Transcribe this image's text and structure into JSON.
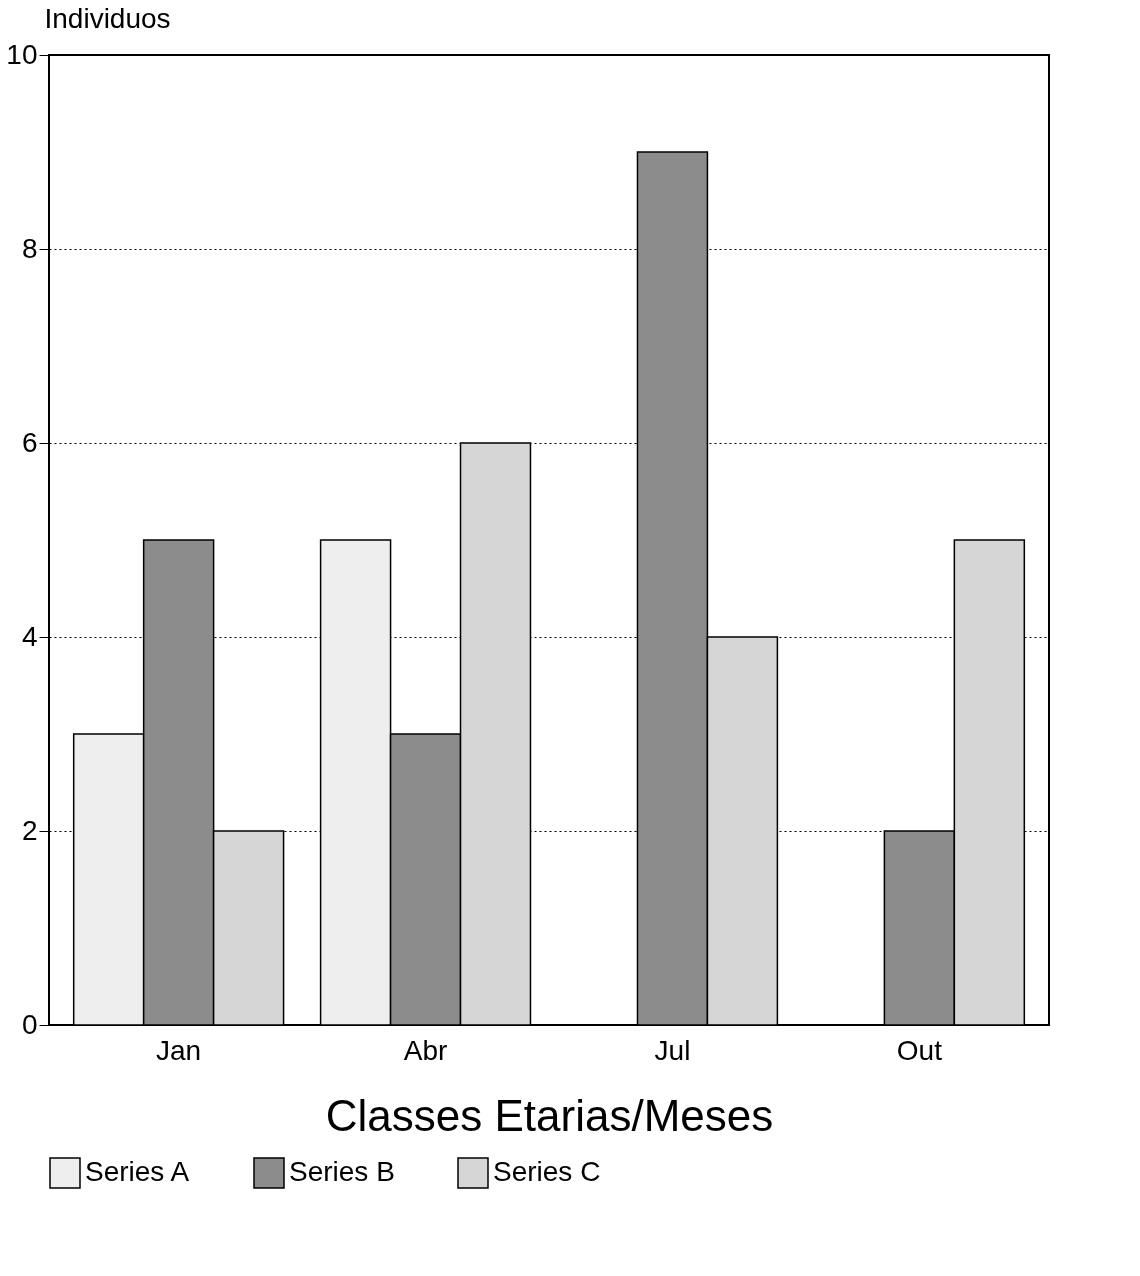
{
  "chart_data": {
    "type": "bar",
    "xlabel": "Classes Etarias/Meses",
    "ylabel": "Individuos",
    "categories": [
      "Jan",
      "Abr",
      "Jul",
      "Out"
    ],
    "series": [
      {
        "name": "Series A",
        "color": "#eeeeee",
        "values": [
          3,
          5,
          null,
          null
        ]
      },
      {
        "name": "Series B",
        "color": "#8c8c8c",
        "values": [
          5,
          3,
          9,
          2
        ]
      },
      {
        "name": "Series C",
        "color": "#d6d6d6",
        "values": [
          2,
          6,
          4,
          5
        ]
      }
    ],
    "ylim": [
      0,
      10
    ],
    "yticks": [
      0,
      2,
      4,
      6,
      8,
      10
    ],
    "grid": "y",
    "line_style": "dotted",
    "legend": "bottom"
  }
}
